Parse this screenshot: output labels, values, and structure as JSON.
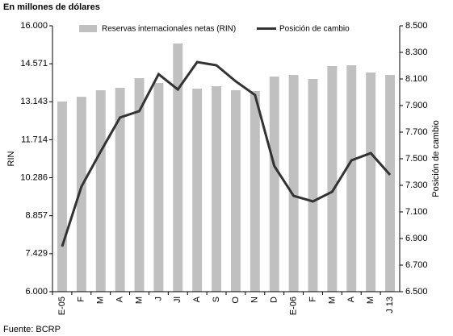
{
  "chart_data": {
    "type": "bar_line",
    "subtitle": "En millones de dólares",
    "source": "Fuente: BCRP",
    "y_label": "RIN",
    "y2_label": "Posición de cambio",
    "categories": [
      "E-05",
      "F",
      "M",
      "A",
      "M",
      "J",
      "Jl",
      "A",
      "S",
      "O",
      "N",
      "D",
      "E-06",
      "F",
      "M",
      "A",
      "M",
      "J 13"
    ],
    "series": [
      {
        "name": "Reservas internacionales netas (RIN)",
        "type": "bar",
        "color": "#c0c0c0",
        "axis": "y",
        "values": [
          13150,
          13330,
          13576,
          13667,
          14030,
          13848,
          15333,
          13636,
          13727,
          13576,
          13545,
          14091,
          14150,
          14000,
          14485,
          14515,
          14242,
          14150
        ]
      },
      {
        "name": "Posición de cambio",
        "type": "line",
        "color": "#333333",
        "axis": "y2",
        "values": [
          6840,
          7290,
          7555,
          7810,
          7858,
          8136,
          8021,
          8227,
          8203,
          8082,
          7979,
          7445,
          7221,
          7179,
          7252,
          7488,
          7542,
          7379
        ]
      }
    ],
    "ylim": [
      6000,
      16000
    ],
    "yticks": [
      {
        "value": 6000,
        "label": "6.000"
      },
      {
        "value": 7429,
        "label": "7.429"
      },
      {
        "value": 8857,
        "label": "8.857"
      },
      {
        "value": 10286,
        "label": "10.286"
      },
      {
        "value": 11714,
        "label": "11.714"
      },
      {
        "value": 13143,
        "label": "13.143"
      },
      {
        "value": 14571,
        "label": "14.571"
      },
      {
        "value": 16000,
        "label": "16.000"
      }
    ],
    "y2lim": [
      6500,
      8500
    ],
    "y2ticks": [
      {
        "value": 6500,
        "label": "6.500"
      },
      {
        "value": 6700,
        "label": "6.700"
      },
      {
        "value": 6900,
        "label": "6.900"
      },
      {
        "value": 7100,
        "label": "7.100"
      },
      {
        "value": 7300,
        "label": "7.300"
      },
      {
        "value": 7500,
        "label": "7.500"
      },
      {
        "value": 7700,
        "label": "7.700"
      },
      {
        "value": 7900,
        "label": "7.900"
      },
      {
        "value": 8100,
        "label": "8.100"
      },
      {
        "value": 8300,
        "label": "8.300"
      },
      {
        "value": 8500,
        "label": "8.500"
      }
    ]
  }
}
